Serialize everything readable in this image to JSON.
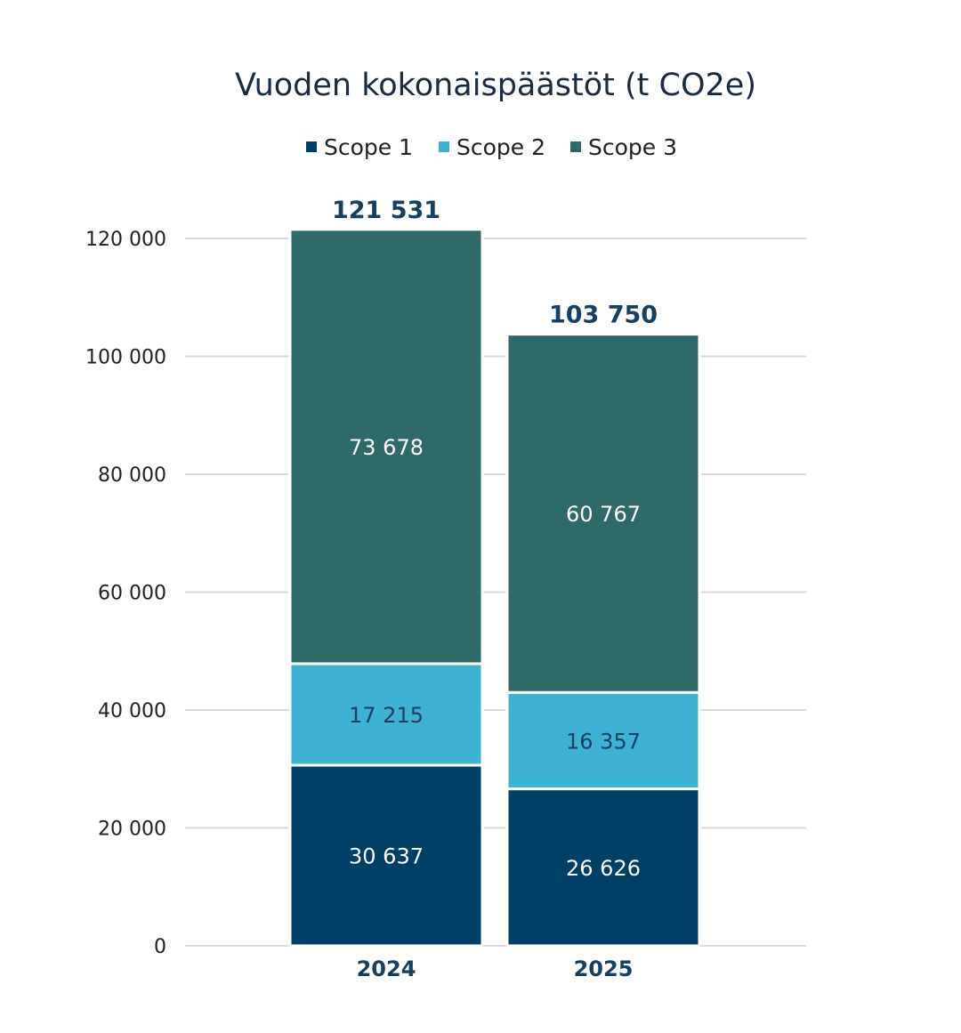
{
  "chart_data": {
    "type": "bar",
    "stacked": true,
    "title": "Vuoden kokonaispäästöt (t CO2e)",
    "categories": [
      "2024",
      "2025"
    ],
    "series": [
      {
        "name": "Scope 1",
        "values": [
          30637,
          26626
        ],
        "color": "#003f66",
        "label_color": "#ffffff",
        "value_labels": [
          "30 637",
          "26 626"
        ]
      },
      {
        "name": "Scope 2",
        "values": [
          17215,
          16357
        ],
        "color": "#3db2d3",
        "label_color": "#1b3f5e",
        "value_labels": [
          "17 215",
          "16 357"
        ]
      },
      {
        "name": "Scope 3",
        "values": [
          73678,
          60767
        ],
        "color": "#2e6a69",
        "label_color": "#ffffff",
        "value_labels": [
          "73 678",
          "60 767"
        ]
      }
    ],
    "totals": [
      121531,
      103750
    ],
    "total_labels": [
      "121 531",
      "103 750"
    ],
    "total_label_color": "#153f63",
    "ylim": [
      0,
      120000
    ],
    "yticks": [
      0,
      20000,
      40000,
      60000,
      80000,
      100000,
      120000
    ],
    "ytick_labels": [
      "0",
      "20 000",
      "40 000",
      "60 000",
      "80 000",
      "100 000",
      "120 000"
    ],
    "grid": true,
    "legend_position": "top-center",
    "title_color": "#1a2b44",
    "axis_label_color": "#153f63",
    "tick_color": "#222222",
    "grid_color": "#d9d9d9"
  }
}
